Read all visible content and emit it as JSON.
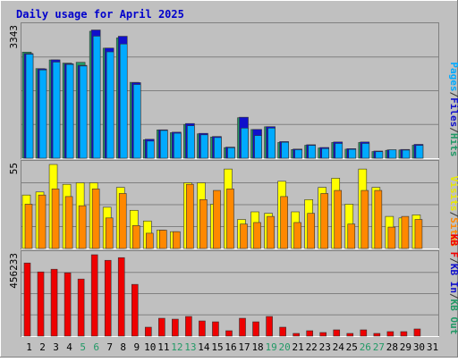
{
  "chart_data": [
    {
      "type": "bar",
      "title": "Daily usage for April 2025",
      "ylabel_max": "3343",
      "side_labels": [
        {
          "text": "Pages",
          "color": "#00aaff"
        },
        {
          "text": "/",
          "color": "#333333"
        },
        {
          "text": "Files",
          "color": "#1010cc"
        },
        {
          "text": "/",
          "color": "#333333"
        },
        {
          "text": "Hits",
          "color": "#229966"
        }
      ],
      "categories": [
        "1",
        "2",
        "3",
        "4",
        "5",
        "6",
        "7",
        "8",
        "9",
        "10",
        "11",
        "12",
        "13",
        "14",
        "15",
        "16",
        "17",
        "18",
        "19",
        "20",
        "21",
        "22",
        "23",
        "24",
        "25",
        "26",
        "27",
        "28",
        "29",
        "30",
        "31"
      ],
      "ylim": [
        0,
        3343
      ],
      "series": [
        {
          "name": "Hits",
          "color": "#229966",
          "values": [
            2700,
            2280,
            2500,
            2420,
            2440,
            3230,
            2800,
            3060,
            1930,
            470,
            720,
            650,
            860,
            620,
            540,
            270,
            1030,
            730,
            800,
            400,
            220,
            330,
            260,
            400,
            230,
            400,
            170,
            200,
            210,
            330,
            0
          ]
        },
        {
          "name": "Files",
          "color": "#1010cc",
          "values": [
            2640,
            2250,
            2480,
            2380,
            2340,
            3240,
            2780,
            3080,
            1900,
            460,
            700,
            640,
            860,
            610,
            530,
            260,
            1020,
            710,
            780,
            400,
            210,
            320,
            250,
            390,
            220,
            390,
            160,
            190,
            200,
            330,
            0
          ]
        },
        {
          "name": "Pages",
          "color": "#00aaff",
          "values": [
            2600,
            2200,
            2400,
            2340,
            2300,
            3060,
            2660,
            2860,
            1830,
            390,
            660,
            590,
            780,
            550,
            480,
            220,
            720,
            530,
            720,
            360,
            170,
            280,
            200,
            330,
            180,
            330,
            120,
            170,
            160,
            280,
            0
          ]
        }
      ]
    },
    {
      "type": "bar",
      "ylabel_max": "55",
      "side_labels": [
        {
          "text": "Visits",
          "color": "#e8e800"
        },
        {
          "text": "/",
          "color": "#333333"
        },
        {
          "text": "Sites",
          "color": "#ff8800"
        }
      ],
      "categories": [
        "1",
        "2",
        "3",
        "4",
        "5",
        "6",
        "7",
        "8",
        "9",
        "10",
        "11",
        "12",
        "13",
        "14",
        "15",
        "16",
        "17",
        "18",
        "19",
        "20",
        "21",
        "22",
        "23",
        "24",
        "25",
        "26",
        "27",
        "28",
        "29",
        "30",
        "31"
      ],
      "ylim": [
        0,
        55
      ],
      "series": [
        {
          "name": "Visits",
          "color": "#ffff00",
          "values": [
            35,
            37,
            55,
            42,
            43,
            43,
            27,
            40,
            25,
            18,
            12,
            11,
            43,
            43,
            29,
            52,
            19,
            24,
            23,
            44,
            24,
            32,
            40,
            46,
            29,
            52,
            40,
            21,
            20,
            22,
            0
          ]
        },
        {
          "name": "Sites",
          "color": "#ff8800",
          "values": [
            29,
            35,
            39,
            34,
            28,
            39,
            20,
            36,
            15,
            10,
            12,
            11,
            42,
            32,
            38,
            39,
            16,
            17,
            21,
            34,
            17,
            23,
            36,
            38,
            16,
            38,
            38,
            14,
            21,
            19,
            0
          ]
        }
      ]
    },
    {
      "type": "bar",
      "ylabel_max": "456233",
      "side_labels": [
        {
          "text": "KB F",
          "color": "#ee0000"
        },
        {
          "text": "/",
          "color": "#333333"
        },
        {
          "text": "KB In",
          "color": "#1010cc"
        },
        {
          "text": "/",
          "color": "#333333"
        },
        {
          "text": "KB Out",
          "color": "#229966"
        }
      ],
      "categories": [
        "1",
        "2",
        "3",
        "4",
        "5",
        "6",
        "7",
        "8",
        "9",
        "10",
        "11",
        "12",
        "13",
        "14",
        "15",
        "16",
        "17",
        "18",
        "19",
        "20",
        "21",
        "22",
        "23",
        "24",
        "25",
        "26",
        "27",
        "28",
        "29",
        "30",
        "31"
      ],
      "ylim": [
        0,
        456233
      ],
      "series": [
        {
          "name": "KB F",
          "color": "#ee0000",
          "values": [
            410000,
            360000,
            375000,
            355000,
            320000,
            456233,
            425000,
            440000,
            290000,
            50000,
            100000,
            95000,
            110000,
            85000,
            80000,
            30000,
            100000,
            80000,
            110000,
            50000,
            15000,
            30000,
            20000,
            35000,
            15000,
            35000,
            15000,
            25000,
            25000,
            40000,
            0
          ]
        }
      ]
    }
  ],
  "x_labels": [
    {
      "text": "1",
      "color": "#000000"
    },
    {
      "text": "2",
      "color": "#000000"
    },
    {
      "text": "3",
      "color": "#000000"
    },
    {
      "text": "4",
      "color": "#000000"
    },
    {
      "text": "5",
      "color": "#229966"
    },
    {
      "text": "6",
      "color": "#229966"
    },
    {
      "text": "7",
      "color": "#000000"
    },
    {
      "text": "8",
      "color": "#000000"
    },
    {
      "text": "9",
      "color": "#000000"
    },
    {
      "text": "10",
      "color": "#000000"
    },
    {
      "text": "11",
      "color": "#000000"
    },
    {
      "text": "12",
      "color": "#229966"
    },
    {
      "text": "13",
      "color": "#229966"
    },
    {
      "text": "14",
      "color": "#000000"
    },
    {
      "text": "15",
      "color": "#000000"
    },
    {
      "text": "16",
      "color": "#000000"
    },
    {
      "text": "17",
      "color": "#000000"
    },
    {
      "text": "18",
      "color": "#000000"
    },
    {
      "text": "19",
      "color": "#229966"
    },
    {
      "text": "20",
      "color": "#229966"
    },
    {
      "text": "21",
      "color": "#000000"
    },
    {
      "text": "22",
      "color": "#000000"
    },
    {
      "text": "23",
      "color": "#000000"
    },
    {
      "text": "24",
      "color": "#000000"
    },
    {
      "text": "25",
      "color": "#000000"
    },
    {
      "text": "26",
      "color": "#229966"
    },
    {
      "text": "27",
      "color": "#229966"
    },
    {
      "text": "28",
      "color": "#000000"
    },
    {
      "text": "29",
      "color": "#000000"
    },
    {
      "text": "30",
      "color": "#000000"
    },
    {
      "text": "31",
      "color": "#000000"
    }
  ],
  "colors": {
    "background": "#c0c0c0",
    "border_light": "#ffffff",
    "border_dark": "#808080",
    "grid": "#808080",
    "title": "#0000cc"
  }
}
